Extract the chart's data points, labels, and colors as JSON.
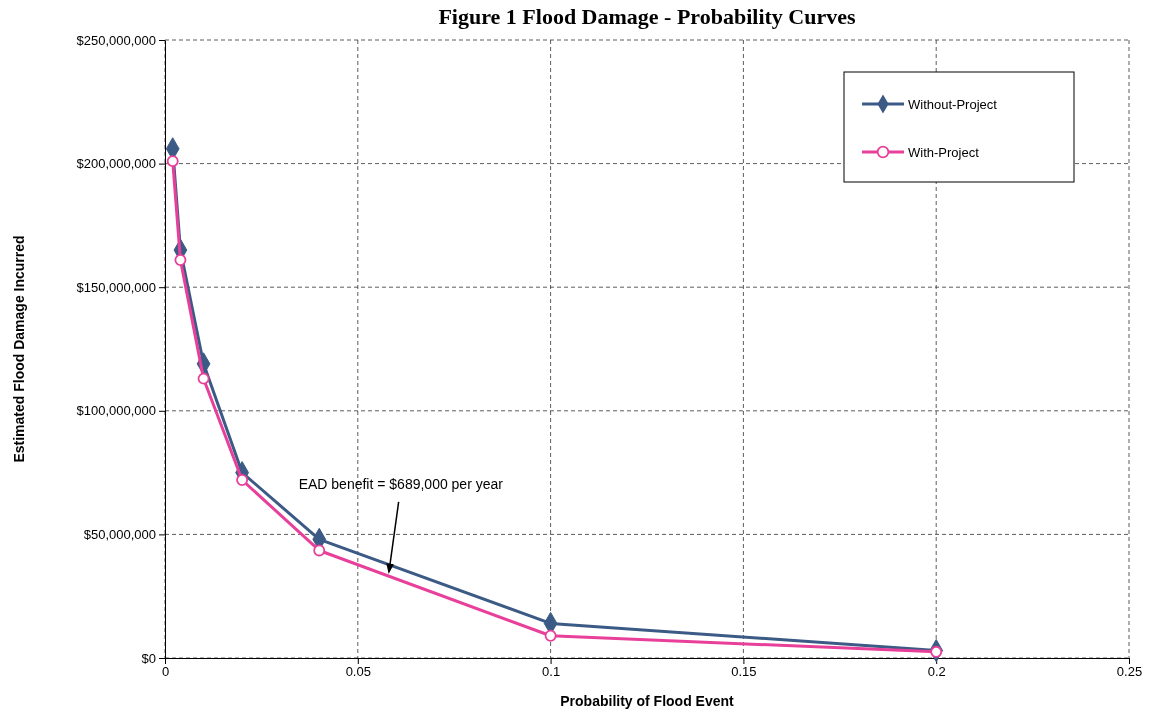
{
  "chart_data": {
    "type": "line",
    "title": "Figure 1 Flood Damage - Probability Curves",
    "xlabel": "Probability of Flood Event",
    "ylabel": "Estimated Flood Damage Incurred",
    "x": [
      0.002,
      0.004,
      0.01,
      0.02,
      0.04,
      0.1,
      0.2
    ],
    "series": [
      {
        "name": "Without-Project",
        "color": "#3b5a85",
        "marker": "diamond",
        "values": [
          206000000,
          165000000,
          119000000,
          75000000,
          48000000,
          14000000,
          3000000
        ]
      },
      {
        "name": "With-Project",
        "color": "#e8409a",
        "marker": "circle",
        "values": [
          201000000,
          161000000,
          113000000,
          72000000,
          43500000,
          9000000,
          2500000
        ]
      }
    ],
    "xlim": [
      0,
      0.25
    ],
    "xticks": [
      0,
      0.05,
      0.1,
      0.15,
      0.2,
      0.25
    ],
    "ylim": [
      0,
      250000000
    ],
    "yticks": [
      {
        "value": 0,
        "label": "$0"
      },
      {
        "value": 50000000,
        "label": "$50,000,000"
      },
      {
        "value": 100000000,
        "label": "$100,000,000"
      },
      {
        "value": 150000000,
        "label": "$150,000,000"
      },
      {
        "value": 200000000,
        "label": "$200,000,000"
      },
      {
        "value": 250000000,
        "label": "$250,000,000"
      }
    ],
    "grid": true,
    "legend": "top right",
    "line_style": "solid",
    "annotations": [
      {
        "text": "EAD benefit = $689,000 per year",
        "x": 0.058,
        "y": 34000000
      }
    ]
  }
}
